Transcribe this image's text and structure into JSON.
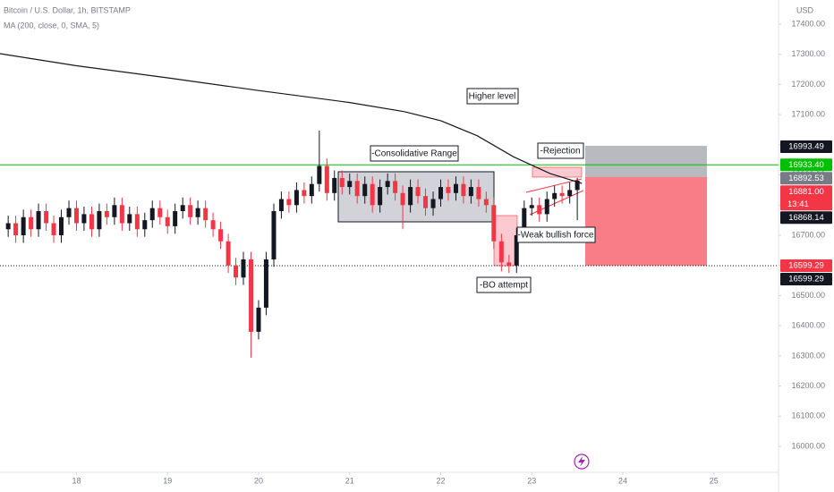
{
  "chart_data": {
    "type": "candlestick",
    "title": "Bitcoin / U.S. Dollar, 1h, BITSTAMP",
    "subtitle": "MA (200, close, 0, SMA, 5)",
    "currency": "USD",
    "up_color": "#131722",
    "down_color": "#f23645",
    "x": [
      17.25,
      17.333,
      17.417,
      17.5,
      17.583,
      17.667,
      17.75,
      17.833,
      17.917,
      18,
      18.083,
      18.167,
      18.25,
      18.333,
      18.417,
      18.5,
      18.583,
      18.667,
      18.75,
      18.833,
      18.917,
      19,
      19.083,
      19.167,
      19.25,
      19.333,
      19.417,
      19.5,
      19.583,
      19.667,
      19.75,
      19.833,
      19.917,
      20,
      20.083,
      20.167,
      20.25,
      20.333,
      20.417,
      20.5,
      20.583,
      20.667,
      20.75,
      20.833,
      20.917,
      21,
      21.083,
      21.167,
      21.25,
      21.333,
      21.417,
      21.5,
      21.583,
      21.667,
      21.75,
      21.833,
      21.917,
      22,
      22.083,
      22.167,
      22.25,
      22.333,
      22.417,
      22.5,
      22.583,
      22.667,
      22.75,
      22.833,
      22.917,
      23,
      23.083,
      23.167,
      23.25,
      23.333,
      23.417,
      23.5
    ],
    "open": [
      16720,
      16740,
      16700,
      16760,
      16720,
      16780,
      16740,
      16700,
      16760,
      16790,
      16740,
      16770,
      16720,
      16780,
      16760,
      16800,
      16740,
      16770,
      16720,
      16750,
      16790,
      16760,
      16730,
      16780,
      16800,
      16760,
      16790,
      16750,
      16720,
      16680,
      16600,
      16560,
      16620,
      16380,
      16460,
      16620,
      16780,
      16820,
      16800,
      16850,
      16830,
      16870,
      16930,
      16840,
      16890,
      16860,
      16880,
      16830,
      16870,
      16800,
      16860,
      16880,
      16840,
      16800,
      16860,
      16830,
      16790,
      16820,
      16860,
      16840,
      16870,
      16830,
      16860,
      16820,
      16800,
      16680,
      16610,
      16600,
      16700,
      16790,
      16800,
      16770,
      16820,
      16840,
      16830,
      16850
    ],
    "high": [
      16765,
      16765,
      16785,
      16785,
      16805,
      16805,
      16765,
      16785,
      16815,
      16815,
      16795,
      16795,
      16805,
      16805,
      16825,
      16825,
      16795,
      16795,
      16775,
      16815,
      16815,
      16785,
      16805,
      16825,
      16825,
      16815,
      16815,
      16775,
      16745,
      16705,
      16625,
      16645,
      16645,
      16485,
      16645,
      16805,
      16845,
      16845,
      16875,
      16875,
      16895,
      17047,
      16955,
      16915,
      16915,
      16905,
      16905,
      16895,
      16895,
      16885,
      16905,
      16905,
      16865,
      16885,
      16885,
      16855,
      16845,
      16885,
      16885,
      16895,
      16895,
      16885,
      16885,
      16845,
      16825,
      16705,
      16635,
      16725,
      16815,
      16825,
      16825,
      16845,
      16865,
      16865,
      16875,
      16890
    ],
    "low": [
      16695,
      16675,
      16675,
      16695,
      16695,
      16715,
      16675,
      16675,
      16735,
      16715,
      16715,
      16695,
      16695,
      16735,
      16735,
      16715,
      16715,
      16695,
      16695,
      16725,
      16735,
      16705,
      16705,
      16755,
      16735,
      16735,
      16725,
      16695,
      16655,
      16575,
      16535,
      16535,
      16294,
      16355,
      16435,
      16595,
      16755,
      16775,
      16775,
      16805,
      16805,
      16845,
      16815,
      16815,
      16835,
      16835,
      16805,
      16805,
      16775,
      16775,
      16835,
      16815,
      16720,
      16775,
      16805,
      16765,
      16765,
      16795,
      16815,
      16815,
      16805,
      16805,
      16795,
      16775,
      16655,
      16580,
      16575,
      16575,
      16675,
      16765,
      16745,
      16745,
      16795,
      16805,
      16805,
      16750
    ],
    "close": [
      16740,
      16700,
      16760,
      16720,
      16780,
      16740,
      16700,
      16760,
      16790,
      16740,
      16770,
      16720,
      16780,
      16760,
      16800,
      16740,
      16770,
      16720,
      16750,
      16790,
      16760,
      16730,
      16780,
      16800,
      16760,
      16790,
      16750,
      16720,
      16680,
      16600,
      16560,
      16620,
      16380,
      16460,
      16620,
      16780,
      16820,
      16800,
      16850,
      16830,
      16870,
      16930,
      16840,
      16890,
      16860,
      16880,
      16830,
      16870,
      16800,
      16860,
      16880,
      16840,
      16800,
      16860,
      16830,
      16790,
      16820,
      16860,
      16840,
      16870,
      16830,
      16860,
      16820,
      16800,
      16680,
      16610,
      16600,
      16700,
      16790,
      16800,
      16770,
      16820,
      16840,
      16830,
      16850,
      16881
    ],
    "ma": {
      "color": "#131722",
      "x": [
        17.16,
        18,
        19,
        20,
        21,
        21.6,
        22,
        22.4,
        22.8,
        23.2,
        23.55
      ],
      "values": [
        17302,
        17262,
        17222,
        17180,
        17140,
        17110,
        17080,
        17030,
        16960,
        16905,
        16872
      ]
    },
    "xlim": [
      17.16,
      25.71
    ],
    "xticks": [
      18,
      19,
      20,
      21,
      22,
      23,
      24,
      25
    ],
    "ylim": [
      15923,
      17480
    ],
    "yticks": [
      {
        "value": 16000,
        "label": "16000.00"
      },
      {
        "value": 16100,
        "label": "16100.00"
      },
      {
        "value": 16200,
        "label": "16200.00"
      },
      {
        "value": 16300,
        "label": "16300.00"
      },
      {
        "value": 16400,
        "label": "16400.00"
      },
      {
        "value": 16500,
        "label": "16500.00"
      },
      {
        "value": 16600,
        "label": "16600.00"
      },
      {
        "value": 16700,
        "label": "16700.00"
      },
      {
        "value": 16800,
        "label": "16800.00"
      },
      {
        "value": 16900,
        "label": "16900.00"
      },
      {
        "value": 17000,
        "label": "17000.00"
      },
      {
        "value": 17100,
        "label": "17100.00"
      },
      {
        "value": 17200,
        "label": "17200.00"
      },
      {
        "value": 17300,
        "label": "17300.00"
      },
      {
        "value": 17400,
        "label": "17400.00"
      }
    ],
    "price_labels": [
      {
        "value": 16993.49,
        "color": "#131722"
      },
      {
        "value": 16933.4,
        "label": "16933.40",
        "color": "#00c000",
        "line": "solid"
      },
      {
        "value": 16892.53,
        "color": "#787b86"
      },
      {
        "value": 16881,
        "label": "16881.00",
        "countdown": "13:41",
        "color": "#f23645"
      },
      {
        "value": 16868.14,
        "color": "#131722"
      },
      {
        "value": 16599.29,
        "color": "#f23645"
      },
      {
        "value": 16599.29,
        "color": "#131722",
        "line": "dotted"
      }
    ],
    "annotations": [
      "Higher level",
      "-Consolidative Range",
      "-Rejection",
      "-Weak bullish force",
      "-BO attempt"
    ]
  }
}
